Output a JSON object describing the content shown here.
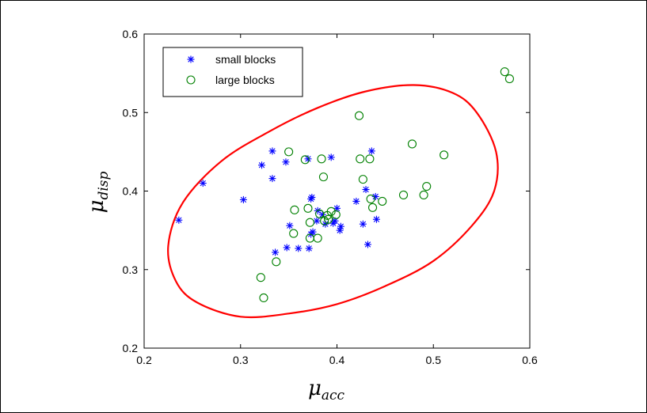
{
  "chart_data": {
    "type": "scatter",
    "xlabel": "μ",
    "xlabel_sub": "acc",
    "ylabel": "μ",
    "ylabel_sub": "disp",
    "xlim": [
      0.2,
      0.6
    ],
    "ylim": [
      0.2,
      0.6
    ],
    "xticks": [
      "0.2",
      "0.3",
      "0.4",
      "0.5",
      "0.6"
    ],
    "yticks": [
      "0.2",
      "0.3",
      "0.4",
      "0.5",
      "0.6"
    ],
    "grid": false,
    "legend_position": "top-left",
    "series": [
      {
        "name": "small blocks",
        "marker": "asterisk",
        "color": "#0000ff",
        "points": [
          [
            0.236,
            0.363
          ],
          [
            0.261,
            0.41
          ],
          [
            0.303,
            0.389
          ],
          [
            0.322,
            0.433
          ],
          [
            0.333,
            0.451
          ],
          [
            0.333,
            0.416
          ],
          [
            0.347,
            0.437
          ],
          [
            0.37,
            0.441
          ],
          [
            0.394,
            0.443
          ],
          [
            0.336,
            0.322
          ],
          [
            0.348,
            0.328
          ],
          [
            0.36,
            0.327
          ],
          [
            0.371,
            0.327
          ],
          [
            0.351,
            0.356
          ],
          [
            0.373,
            0.345
          ],
          [
            0.375,
            0.348
          ],
          [
            0.38,
            0.375
          ],
          [
            0.373,
            0.39
          ],
          [
            0.374,
            0.392
          ],
          [
            0.379,
            0.362
          ],
          [
            0.388,
            0.358
          ],
          [
            0.396,
            0.359
          ],
          [
            0.403,
            0.35
          ],
          [
            0.4,
            0.378
          ],
          [
            0.385,
            0.37
          ],
          [
            0.404,
            0.355
          ],
          [
            0.42,
            0.387
          ],
          [
            0.43,
            0.402
          ],
          [
            0.436,
            0.451
          ],
          [
            0.44,
            0.393
          ],
          [
            0.441,
            0.364
          ],
          [
            0.427,
            0.358
          ],
          [
            0.432,
            0.332
          ],
          [
            0.398,
            0.362
          ]
        ]
      },
      {
        "name": "large blocks",
        "marker": "circle",
        "color": "#008000",
        "points": [
          [
            0.35,
            0.45
          ],
          [
            0.367,
            0.44
          ],
          [
            0.384,
            0.441
          ],
          [
            0.386,
            0.418
          ],
          [
            0.423,
            0.496
          ],
          [
            0.424,
            0.441
          ],
          [
            0.434,
            0.441
          ],
          [
            0.427,
            0.415
          ],
          [
            0.478,
            0.46
          ],
          [
            0.511,
            0.446
          ],
          [
            0.574,
            0.552
          ],
          [
            0.579,
            0.543
          ],
          [
            0.356,
            0.376
          ],
          [
            0.355,
            0.346
          ],
          [
            0.37,
            0.378
          ],
          [
            0.372,
            0.36
          ],
          [
            0.382,
            0.371
          ],
          [
            0.39,
            0.369
          ],
          [
            0.394,
            0.374
          ],
          [
            0.399,
            0.37
          ],
          [
            0.387,
            0.362
          ],
          [
            0.391,
            0.364
          ],
          [
            0.372,
            0.34
          ],
          [
            0.38,
            0.34
          ],
          [
            0.321,
            0.29
          ],
          [
            0.337,
            0.31
          ],
          [
            0.324,
            0.264
          ],
          [
            0.435,
            0.39
          ],
          [
            0.437,
            0.379
          ],
          [
            0.447,
            0.387
          ],
          [
            0.469,
            0.395
          ],
          [
            0.493,
            0.406
          ],
          [
            0.49,
            0.395
          ]
        ]
      }
    ],
    "ellipse": {
      "color": "#ff0000",
      "curve": [
        [
          0.3,
          0.24
        ],
        [
          0.35,
          0.244
        ],
        [
          0.4,
          0.256
        ],
        [
          0.45,
          0.279
        ],
        [
          0.5,
          0.311
        ],
        [
          0.54,
          0.356
        ],
        [
          0.563,
          0.4
        ],
        [
          0.565,
          0.45
        ],
        [
          0.545,
          0.5
        ],
        [
          0.52,
          0.525
        ],
        [
          0.48,
          0.535
        ],
        [
          0.43,
          0.527
        ],
        [
          0.38,
          0.506
        ],
        [
          0.33,
          0.476
        ],
        [
          0.28,
          0.438
        ],
        [
          0.24,
          0.385
        ],
        [
          0.225,
          0.33
        ],
        [
          0.233,
          0.285
        ],
        [
          0.255,
          0.258
        ]
      ]
    }
  }
}
